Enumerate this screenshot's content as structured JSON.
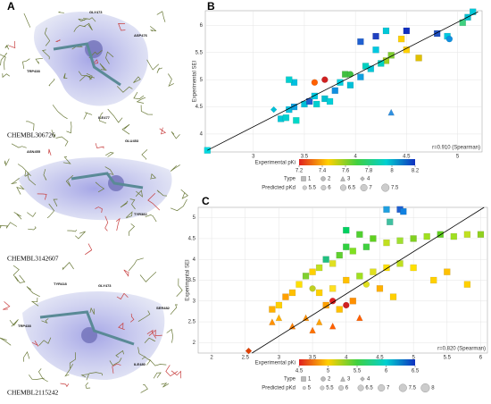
{
  "panel_a": {
    "label": "A",
    "structures": [
      {
        "name": "CHEMBL306726",
        "residues": [
          "GLY473",
          "ASP476",
          "TRP438",
          "ILE477"
        ]
      },
      {
        "name": "CHEMBL3142607",
        "residues": [
          "ASN455",
          "GLU453",
          "TYR382"
        ]
      },
      {
        "name": "CHEMBL2115242",
        "residues": [
          "TYR418",
          "GLY473",
          "SER482",
          "TRP438",
          "ILE480"
        ]
      }
    ]
  },
  "chart_data": [
    {
      "type": "scatter",
      "label": "B",
      "xlabel": "Predicted SEI",
      "ylabel": "Experimental SEI",
      "annotation": "r=0.910 (Spearman)",
      "xlim": [
        2.53,
        5.24
      ],
      "ylim": [
        3.67,
        6.27
      ],
      "xticks": [
        3,
        3.5,
        4,
        4.5,
        5
      ],
      "yticks": [
        4,
        4.5,
        5,
        5.5,
        6
      ],
      "fit_line": {
        "x": [
          2.55,
          5.2
        ],
        "y": [
          3.7,
          6.25
        ]
      },
      "legend_title": "Type",
      "series": [
        {
          "name": "1",
          "marker": "square",
          "x": [
            2.55,
            3.27,
            3.32,
            3.35,
            3.4,
            3.42,
            3.5,
            3.55,
            3.62,
            3.6,
            3.7,
            3.75,
            3.8,
            3.4,
            3.35,
            3.95,
            3.9,
            4.05,
            4.15,
            4.3,
            4.25,
            4.35,
            4.2,
            4.05,
            4.2,
            4.3,
            4.45,
            4.5,
            4.8,
            4.9,
            5.05,
            5.1,
            5.15,
            4.62,
            4.5,
            4.1,
            3.85
          ],
          "values": [
            3.7,
            4.28,
            4.3,
            4.45,
            4.5,
            4.25,
            4.55,
            4.6,
            4.55,
            4.7,
            4.65,
            4.6,
            4.8,
            4.95,
            5.0,
            4.9,
            5.1,
            5.05,
            5.2,
            5.35,
            5.3,
            5.45,
            5.55,
            5.7,
            5.8,
            5.9,
            5.75,
            5.9,
            5.85,
            5.8,
            6.05,
            6.15,
            6.25,
            5.4,
            5.55,
            5.25,
            4.95
          ],
          "colors": [
            "#00d8e0",
            "#00c8d8",
            "#00d0d0",
            "#00c0e0",
            "#10a0e0",
            "#00d8c8",
            "#00c0d8",
            "#2060d0",
            "#00d0d0",
            "#00c8e0",
            "#00c0d0",
            "#00d0d8",
            "#1090e0",
            "#00c0e0",
            "#00d0d0",
            "#00c0d8",
            "#40c040",
            "#10a0e0",
            "#00c8d8",
            "#a0d020",
            "#00d0c0",
            "#80d030",
            "#00c8e0",
            "#2060d0",
            "#2040c0",
            "#00c8d8",
            "#ffd000",
            "#1030c0",
            "#2050c0",
            "#00c8e0",
            "#40d080",
            "#00c0d0",
            "#00c8d8",
            "#e0c000",
            "#ffd000",
            "#00d0c0",
            "#00d0e0"
          ]
        },
        {
          "name": "2",
          "marker": "circle",
          "x": [
            3.6,
            3.7,
            3.95,
            4.92
          ],
          "values": [
            4.95,
            5.0,
            5.1,
            5.75
          ],
          "colors": [
            "#ff6000",
            "#d02020",
            "#40c040",
            "#1090e0"
          ]
        },
        {
          "name": "3",
          "marker": "triangle",
          "x": [
            4.35
          ],
          "values": [
            4.4
          ],
          "colors": [
            "#3090e0"
          ]
        },
        {
          "name": "4",
          "marker": "diamond",
          "x": [
            3.2
          ],
          "values": [
            4.45
          ],
          "colors": [
            "#00c0d8"
          ]
        }
      ],
      "colorbar": {
        "title": "Experimental pKi",
        "ticks": [
          7.2,
          7.4,
          7.6,
          7.8,
          8,
          8.2
        ],
        "colors": [
          "#e02020",
          "#ffd000",
          "#40d040",
          "#00d0d0",
          "#1030c0"
        ]
      },
      "size_legend": {
        "title": "Predicted pKd",
        "values": [
          5.5,
          6,
          6.5,
          7,
          7.5
        ]
      }
    },
    {
      "type": "scatter",
      "label": "C",
      "xlabel": "Predicted SEI",
      "ylabel": "Experimental SEI",
      "annotation": "r=0.820 (Spearman)",
      "xlim": [
        1.8,
        6.1
      ],
      "ylim": [
        1.75,
        5.25
      ],
      "xticks": [
        2,
        2.5,
        3,
        3.5,
        4,
        4.5,
        5,
        5.5,
        6
      ],
      "yticks": [
        2,
        2.5,
        3,
        3.5,
        4,
        4.5,
        5
      ],
      "fit_line": {
        "x": [
          2.6,
          6.05
        ],
        "y": [
          1.75,
          5.25
        ]
      },
      "legend_title": "Type",
      "series": [
        {
          "name": "1",
          "marker": "square",
          "x": [
            5.2,
            5.4,
            5.6,
            5.8,
            6.0,
            5.0,
            4.8,
            4.6,
            4.4,
            4.3,
            4.1,
            4.2,
            4.0,
            3.9,
            3.8,
            3.7,
            3.6,
            3.5,
            3.4,
            3.3,
            3.2,
            3.1,
            3.0,
            2.9,
            3.6,
            3.8,
            4.0,
            4.2,
            4.4,
            4.6,
            4.8,
            5.0,
            5.3,
            5.5,
            5.8,
            4.5,
            4.7,
            3.9,
            4.1,
            3.7,
            4.6,
            4.8,
            4.85,
            4.65,
            4.0
          ],
          "values": [
            4.55,
            4.6,
            4.55,
            4.6,
            4.6,
            4.5,
            4.45,
            4.4,
            4.5,
            4.3,
            4.2,
            4.6,
            4.3,
            4.1,
            3.9,
            4.0,
            3.8,
            3.7,
            3.6,
            3.4,
            3.2,
            3.1,
            2.9,
            2.8,
            3.2,
            3.3,
            3.5,
            3.6,
            3.7,
            3.8,
            3.9,
            3.8,
            3.5,
            3.7,
            3.4,
            3.3,
            3.1,
            2.8,
            3.0,
            2.9,
            5.2,
            5.2,
            5.15,
            4.9,
            4.7
          ],
          "colors": [
            "#a0e020",
            "#60d020",
            "#a0e020",
            "#c0e020",
            "#90d020",
            "#80d020",
            "#a0e030",
            "#c0e020",
            "#60d020",
            "#40d040",
            "#80e020",
            "#50d030",
            "#30d040",
            "#60d030",
            "#e0e020",
            "#20c080",
            "#c0e020",
            "#ffd000",
            "#80d030",
            "#ffe000",
            "#ffc000",
            "#ffa000",
            "#ffd000",
            "#ffb000",
            "#ffd000",
            "#ffe020",
            "#ffc000",
            "#a0e020",
            "#e0e020",
            "#ffe000",
            "#c0e020",
            "#ffe000",
            "#ffd000",
            "#ffc000",
            "#ffd000",
            "#ffb000",
            "#ffd000",
            "#ffc000",
            "#ff9000",
            "#ffa000",
            "#20a0e0",
            "#2060d0",
            "#1080e0",
            "#40c0a0",
            "#00d060"
          ]
        },
        {
          "name": "2",
          "marker": "circle",
          "x": [
            3.8,
            4.0,
            3.5,
            4.3
          ],
          "values": [
            3.0,
            2.9,
            3.3,
            3.4
          ],
          "colors": [
            "#e02020",
            "#d02020",
            "#c0d020",
            "#e0e020"
          ]
        },
        {
          "name": "3",
          "marker": "triangle",
          "x": [
            3.2,
            3.4,
            3.5,
            3.6,
            3.8,
            3.0,
            2.9,
            4.2
          ],
          "values": [
            2.4,
            2.6,
            2.3,
            2.5,
            2.4,
            2.6,
            2.5,
            2.6
          ],
          "colors": [
            "#ff8000",
            "#ff9000",
            "#ff7000",
            "#ffa000",
            "#ff6000",
            "#ffb000",
            "#ff9000",
            "#ff6000"
          ]
        },
        {
          "name": "4",
          "marker": "diamond",
          "x": [
            2.55
          ],
          "values": [
            1.8
          ],
          "colors": [
            "#e04000"
          ]
        }
      ],
      "colorbar": {
        "title": "Experimental pKi",
        "ticks": [
          4.5,
          5,
          5.5,
          6,
          6.5
        ],
        "colors": [
          "#e02020",
          "#ffd000",
          "#40d040",
          "#00d0d0",
          "#1030c0"
        ]
      },
      "size_legend": {
        "title": "Predicted pKd",
        "values": [
          5,
          5.5,
          6,
          6.5,
          7,
          7.5,
          8
        ]
      }
    }
  ]
}
